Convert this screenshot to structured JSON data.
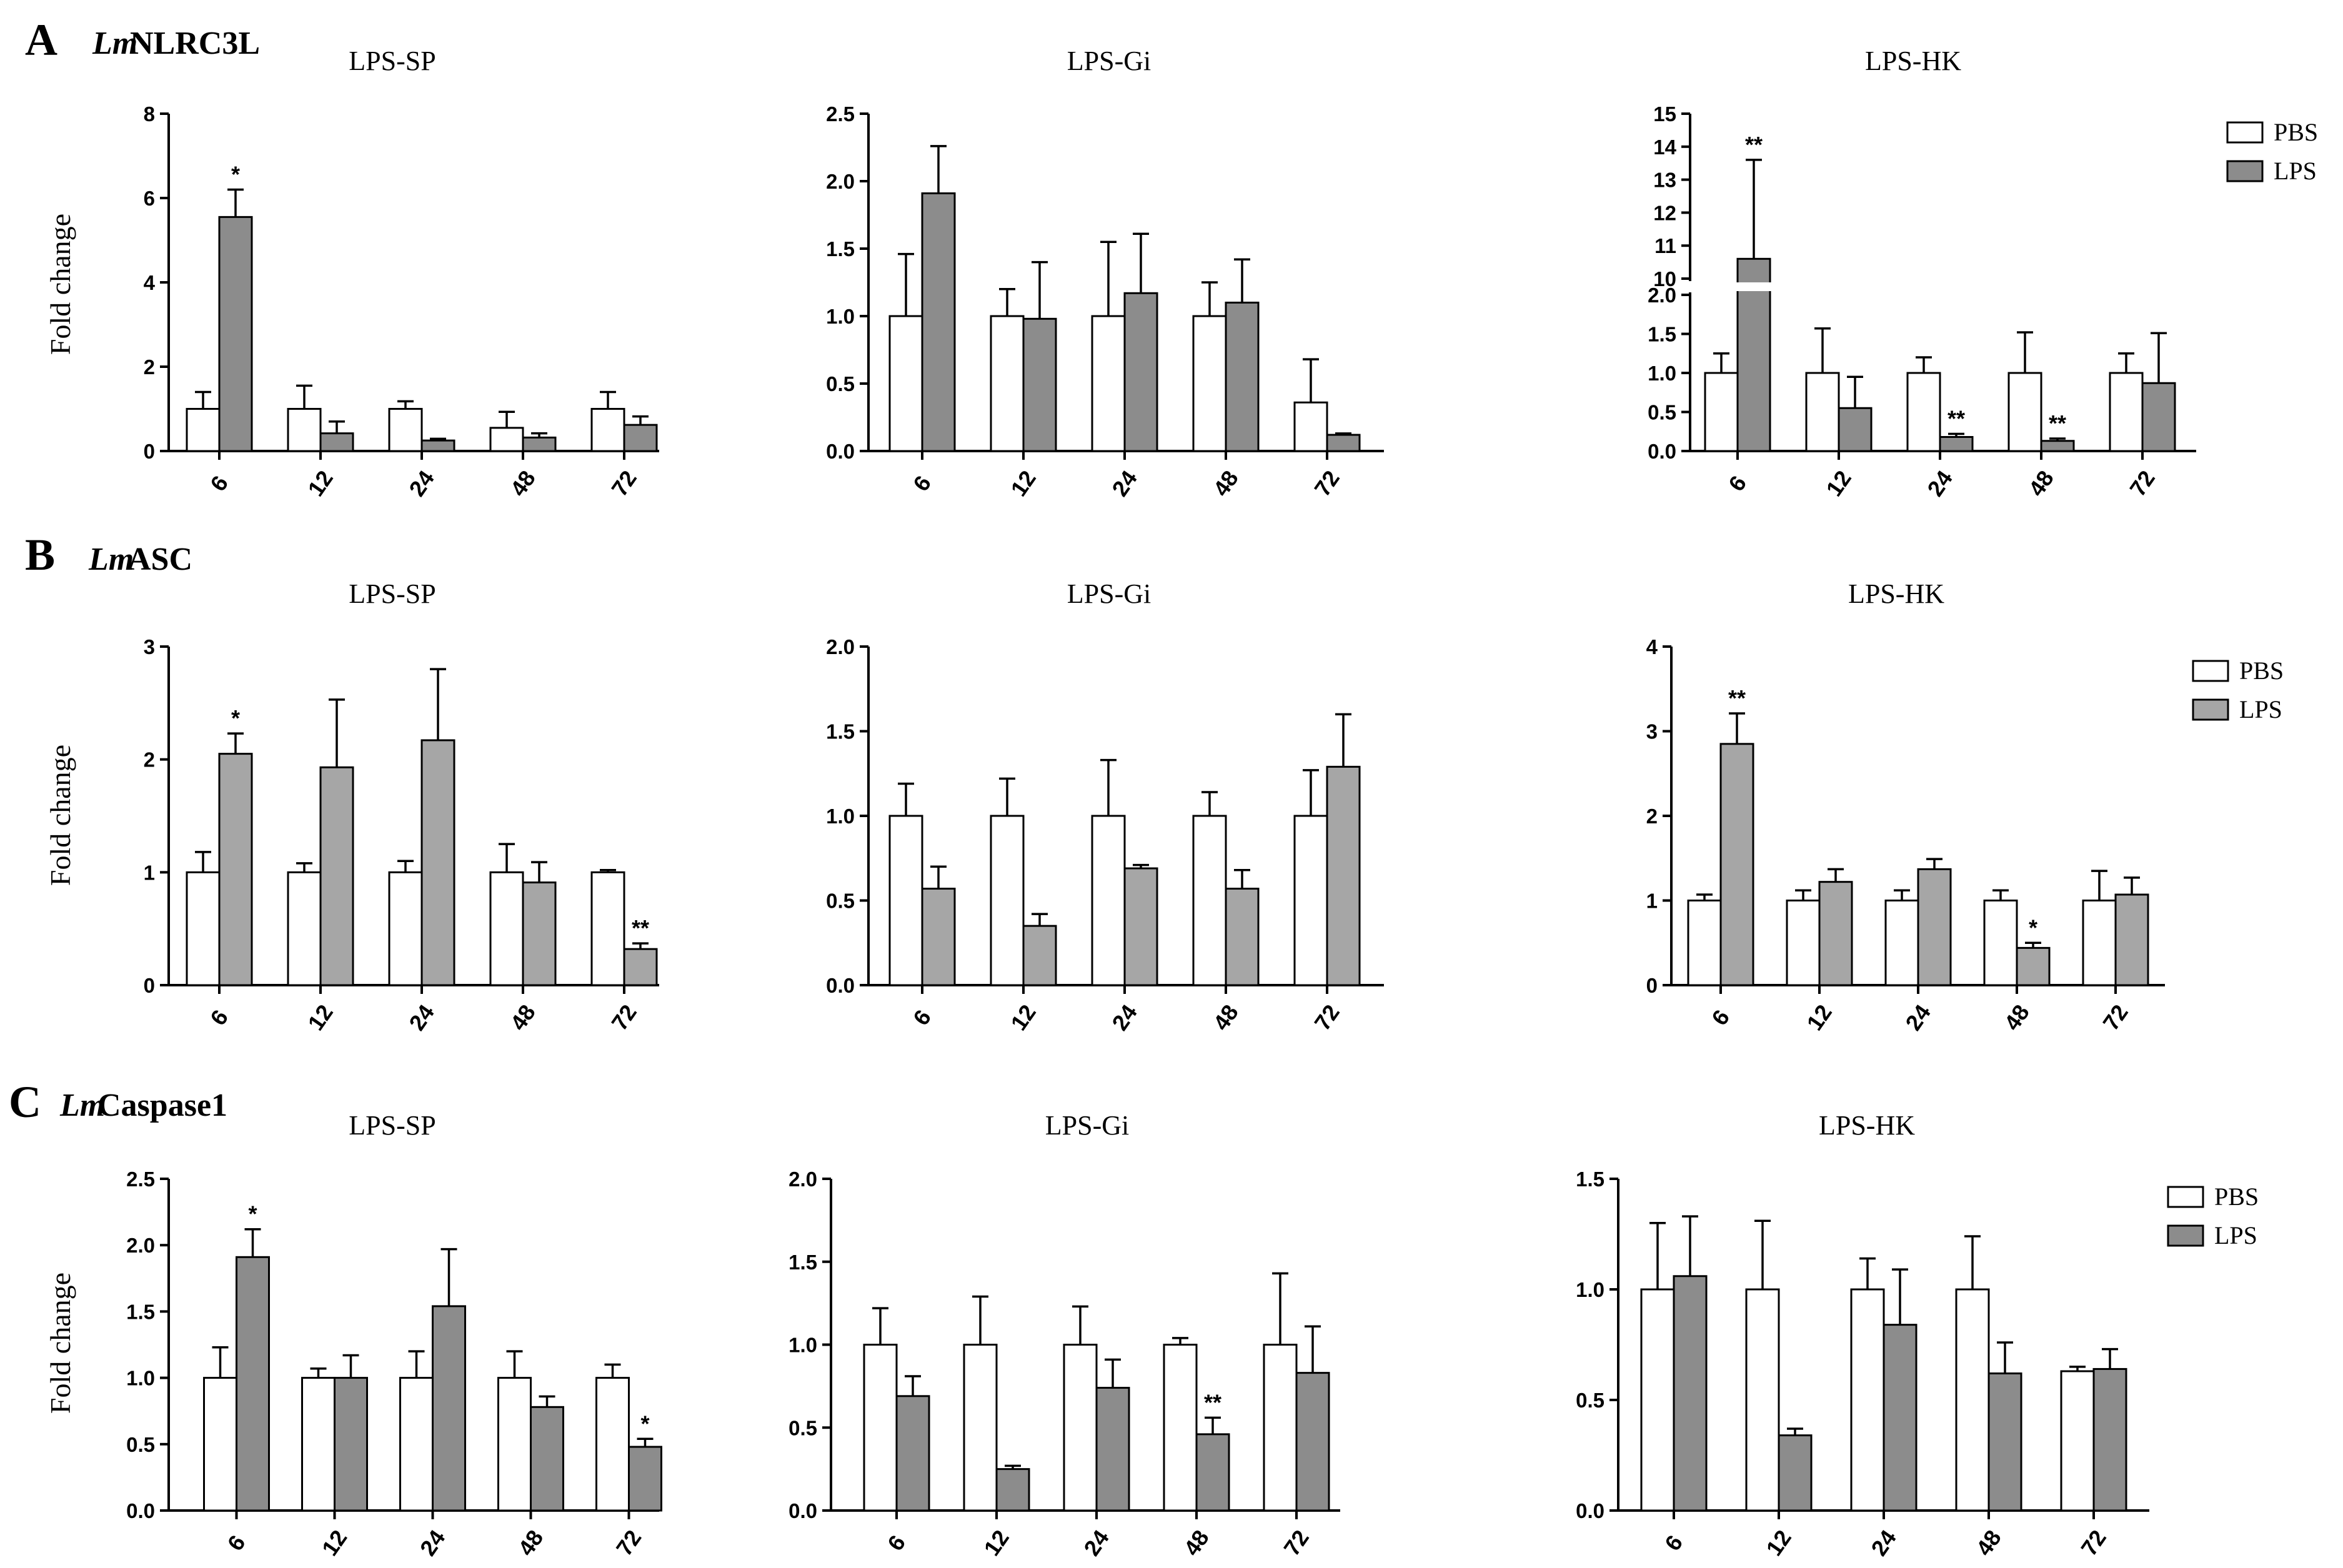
{
  "rows": [
    {
      "letter": "A",
      "gene_italic": "Lm",
      "gene_rest": "NLRC3L",
      "ylabel": "Fold change"
    },
    {
      "letter": "B",
      "gene_italic": "Lm",
      "gene_rest": "ASC",
      "ylabel": "Fold change"
    },
    {
      "letter": "C",
      "gene_italic": "Lm",
      "gene_rest": "Caspase1",
      "ylabel": "Fold change"
    }
  ],
  "legend": {
    "pbs": "PBS",
    "lps": "LPS"
  },
  "colors": {
    "pbs": "#ffffff",
    "lps_dark": "#8c8c8c",
    "lps_light": "#a6a6a6",
    "axis": "#000000"
  },
  "chart_data": [
    {
      "type": "bar",
      "title": "LPS-SP",
      "categories": [
        "6",
        "12",
        "24",
        "48",
        "72"
      ],
      "yticks": [
        "0",
        "2",
        "4",
        "6",
        "8"
      ],
      "ylim": [
        0,
        8
      ],
      "series": [
        {
          "name": "PBS",
          "values": [
            1.0,
            1.0,
            1.0,
            0.55,
            1.0
          ],
          "errors": [
            0.4,
            0.55,
            0.18,
            0.38,
            0.4
          ]
        },
        {
          "name": "LPS",
          "values": [
            5.55,
            0.42,
            0.25,
            0.32,
            0.62
          ],
          "errors": [
            0.65,
            0.28,
            0.04,
            0.1,
            0.2
          ]
        }
      ],
      "significance": [
        {
          "category": 0,
          "series": 1,
          "label": "*"
        }
      ]
    },
    {
      "type": "bar",
      "title": "LPS-Gi",
      "categories": [
        "6",
        "12",
        "24",
        "48",
        "72"
      ],
      "yticks": [
        "0.0",
        "0.5",
        "1.0",
        "1.5",
        "2.0",
        "2.5"
      ],
      "ylim": [
        0,
        2.5
      ],
      "series": [
        {
          "name": "PBS",
          "values": [
            1.0,
            1.0,
            1.0,
            1.0,
            0.36
          ],
          "errors": [
            0.46,
            0.2,
            0.55,
            0.25,
            0.32
          ]
        },
        {
          "name": "LPS",
          "values": [
            1.91,
            0.98,
            1.17,
            1.1,
            0.12
          ],
          "errors": [
            0.35,
            0.42,
            0.44,
            0.32,
            0.01
          ]
        }
      ],
      "significance": []
    },
    {
      "type": "bar",
      "title": "LPS-HK",
      "categories": [
        "6",
        "12",
        "24",
        "48",
        "72"
      ],
      "yticks": [
        "0.0",
        "0.5",
        "1.0",
        "1.5",
        "2.0",
        "10",
        "11",
        "12",
        "13",
        "14",
        "15"
      ],
      "ylim": [
        0,
        15
      ],
      "axis_break": [
        2,
        10
      ],
      "series": [
        {
          "name": "PBS",
          "values": [
            1.0,
            1.0,
            1.0,
            1.0,
            1.0
          ],
          "errors": [
            0.25,
            0.57,
            0.2,
            0.52,
            0.25
          ]
        },
        {
          "name": "LPS",
          "values": [
            10.6,
            0.55,
            0.18,
            0.13,
            0.87
          ],
          "errors": [
            3.0,
            0.4,
            0.04,
            0.03,
            0.64
          ]
        }
      ],
      "significance": [
        {
          "category": 0,
          "series": 1,
          "label": "**"
        },
        {
          "category": 2,
          "series": 1,
          "label": "**"
        },
        {
          "category": 3,
          "series": 1,
          "label": "**"
        }
      ]
    },
    {
      "type": "bar",
      "title": "LPS-SP",
      "categories": [
        "6",
        "12",
        "24",
        "48",
        "72"
      ],
      "yticks": [
        "0",
        "1",
        "2",
        "3"
      ],
      "ylim": [
        0,
        3
      ],
      "series": [
        {
          "name": "PBS",
          "values": [
            1.0,
            1.0,
            1.0,
            1.0,
            1.0
          ],
          "errors": [
            0.18,
            0.08,
            0.1,
            0.25,
            0.02
          ]
        },
        {
          "name": "LPS",
          "values": [
            2.05,
            1.93,
            2.17,
            0.91,
            0.32
          ],
          "errors": [
            0.18,
            0.6,
            0.63,
            0.18,
            0.05
          ]
        }
      ],
      "significance": [
        {
          "category": 0,
          "series": 1,
          "label": "*"
        },
        {
          "category": 4,
          "series": 1,
          "label": "**"
        }
      ]
    },
    {
      "type": "bar",
      "title": "LPS-Gi",
      "categories": [
        "6",
        "12",
        "24",
        "48",
        "72"
      ],
      "yticks": [
        "0.0",
        "0.5",
        "1.0",
        "1.5",
        "2.0"
      ],
      "ylim": [
        0,
        2.0
      ],
      "series": [
        {
          "name": "PBS",
          "values": [
            1.0,
            1.0,
            1.0,
            1.0,
            1.0
          ],
          "errors": [
            0.19,
            0.22,
            0.33,
            0.14,
            0.27
          ]
        },
        {
          "name": "LPS",
          "values": [
            0.57,
            0.35,
            0.69,
            0.57,
            1.29
          ],
          "errors": [
            0.13,
            0.07,
            0.02,
            0.11,
            0.31
          ]
        }
      ],
      "significance": []
    },
    {
      "type": "bar",
      "title": "LPS-HK",
      "categories": [
        "6",
        "12",
        "24",
        "48",
        "72"
      ],
      "yticks": [
        "0",
        "1",
        "2",
        "3",
        "4"
      ],
      "ylim": [
        0,
        4
      ],
      "series": [
        {
          "name": "PBS",
          "values": [
            1.0,
            1.0,
            1.0,
            1.0,
            1.0
          ],
          "errors": [
            0.07,
            0.12,
            0.12,
            0.12,
            0.35
          ]
        },
        {
          "name": "LPS",
          "values": [
            2.85,
            1.22,
            1.37,
            0.44,
            1.07
          ],
          "errors": [
            0.36,
            0.15,
            0.12,
            0.06,
            0.2
          ]
        }
      ],
      "significance": [
        {
          "category": 0,
          "series": 1,
          "label": "**"
        },
        {
          "category": 3,
          "series": 1,
          "label": "*"
        }
      ]
    },
    {
      "type": "bar",
      "title": "LPS-SP",
      "categories": [
        "6",
        "12",
        "24",
        "48",
        "72"
      ],
      "yticks": [
        "0.0",
        "0.5",
        "1.0",
        "1.5",
        "2.0",
        "2.5"
      ],
      "ylim": [
        0,
        2.5
      ],
      "series": [
        {
          "name": "PBS",
          "values": [
            1.0,
            1.0,
            1.0,
            1.0,
            1.0
          ],
          "errors": [
            0.23,
            0.07,
            0.2,
            0.2,
            0.1
          ]
        },
        {
          "name": "LPS",
          "values": [
            1.91,
            1.0,
            1.54,
            0.78,
            0.48
          ],
          "errors": [
            0.21,
            0.17,
            0.43,
            0.08,
            0.06
          ]
        }
      ],
      "significance": [
        {
          "category": 0,
          "series": 1,
          "label": "*"
        },
        {
          "category": 4,
          "series": 1,
          "label": "*"
        }
      ]
    },
    {
      "type": "bar",
      "title": "LPS-Gi",
      "categories": [
        "6",
        "12",
        "24",
        "48",
        "72"
      ],
      "yticks": [
        "0.0",
        "0.5",
        "1.0",
        "1.5",
        "2.0"
      ],
      "ylim": [
        0,
        2.0
      ],
      "series": [
        {
          "name": "PBS",
          "values": [
            1.0,
            1.0,
            1.0,
            1.0,
            1.0
          ],
          "errors": [
            0.22,
            0.29,
            0.23,
            0.04,
            0.43
          ]
        },
        {
          "name": "LPS",
          "values": [
            0.69,
            0.25,
            0.74,
            0.46,
            0.83
          ],
          "errors": [
            0.12,
            0.02,
            0.17,
            0.1,
            0.28
          ]
        }
      ],
      "significance": [
        {
          "category": 3,
          "series": 1,
          "label": "**"
        }
      ]
    },
    {
      "type": "bar",
      "title": "LPS-HK",
      "categories": [
        "6",
        "12",
        "24",
        "48",
        "72"
      ],
      "yticks": [
        "0.0",
        "0.5",
        "1.0",
        "1.5"
      ],
      "ylim": [
        0,
        1.5
      ],
      "series": [
        {
          "name": "PBS",
          "values": [
            1.0,
            1.0,
            1.0,
            1.0,
            0.63
          ],
          "errors": [
            0.3,
            0.31,
            0.14,
            0.24,
            0.02
          ]
        },
        {
          "name": "LPS",
          "values": [
            1.06,
            0.34,
            0.84,
            0.62,
            0.64
          ],
          "errors": [
            0.27,
            0.03,
            0.25,
            0.14,
            0.09
          ]
        }
      ],
      "significance": []
    }
  ]
}
